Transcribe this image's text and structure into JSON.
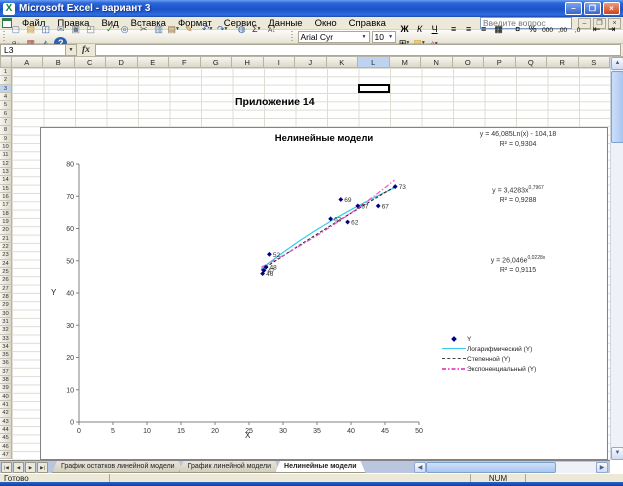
{
  "window": {
    "title": "Microsoft Excel - вариант 3",
    "controls": {
      "minimize": "–",
      "restore": "❐",
      "close": "×"
    }
  },
  "menu": {
    "items": [
      "Файл",
      "Правка",
      "Вид",
      "Вставка",
      "Формат",
      "Сервис",
      "Данные",
      "Окно",
      "Справка"
    ],
    "question_box": "Введите вопрос"
  },
  "toolbar": {
    "standard": [
      {
        "name": "new",
        "glyph": "▢",
        "color": "#5a7ba6"
      },
      {
        "name": "open",
        "glyph": "▤",
        "color": "#c8922a"
      },
      {
        "name": "save",
        "glyph": "◫",
        "color": "#2f5fb0"
      },
      {
        "name": "mail",
        "glyph": "✉",
        "color": "#6a7a8c"
      },
      {
        "name": "print",
        "glyph": "▣",
        "color": "#6a7a8c"
      },
      {
        "name": "print-preview",
        "glyph": "◰",
        "color": "#6a7a8c",
        "divider_after": true
      },
      {
        "name": "spelling",
        "glyph": "✓",
        "color": "#2e7d32"
      },
      {
        "name": "research",
        "glyph": "◎",
        "color": "#3f64a0",
        "divider_after": true
      },
      {
        "name": "cut",
        "glyph": "✂",
        "color": "#555555"
      },
      {
        "name": "copy",
        "glyph": "▥",
        "color": "#5a7ba6"
      },
      {
        "name": "paste",
        "glyph": "▤",
        "color": "#8a6a3a",
        "dd": true
      },
      {
        "name": "format-painter",
        "glyph": "✎",
        "color": "#b07a2a",
        "divider_after": true
      },
      {
        "name": "undo",
        "glyph": "↶",
        "color": "#2f5fb0",
        "dd": true
      },
      {
        "name": "redo",
        "glyph": "↷",
        "color": "#2f5fb0",
        "dd": true,
        "divider_after": true
      },
      {
        "name": "hyperlink",
        "glyph": "◍",
        "color": "#3f64a0"
      },
      {
        "name": "autosum",
        "glyph": "Σ",
        "color": "#333333",
        "dd": true
      },
      {
        "name": "sort-ascending",
        "glyph": "А↓",
        "color": "#333333",
        "small": true
      },
      {
        "name": "sort-descending",
        "glyph": "Я↓",
        "color": "#333333",
        "small": true
      },
      {
        "name": "chart-wizard",
        "glyph": "▦",
        "color": "#b04040"
      },
      {
        "name": "drawing",
        "glyph": "◭",
        "color": "#3f64a0"
      },
      {
        "name": "help",
        "glyph": "?",
        "color": "#ffffff",
        "help": true
      }
    ],
    "formatting": {
      "font_name": "Arial Cyr",
      "font_size": "10",
      "buttons": [
        {
          "name": "bold",
          "glyph": "Ж",
          "cls": "fmt-b"
        },
        {
          "name": "italic",
          "glyph": "К",
          "cls": "fmt-i"
        },
        {
          "name": "underline",
          "glyph": "Ч",
          "cls": "fmt-u",
          "divider_after": true
        },
        {
          "name": "align-left",
          "glyph": "≡"
        },
        {
          "name": "align-center",
          "glyph": "≡"
        },
        {
          "name": "align-right",
          "glyph": "≡"
        },
        {
          "name": "merge-center",
          "glyph": "▦",
          "divider_after": true
        },
        {
          "name": "currency",
          "glyph": "¤"
        },
        {
          "name": "percent",
          "glyph": "%"
        },
        {
          "name": "comma-style",
          "glyph": "000",
          "small": true
        },
        {
          "name": "increase-decimal",
          "glyph": ",00",
          "small": true
        },
        {
          "name": "decrease-decimal",
          "glyph": ",0",
          "small": true,
          "divider_after": true
        },
        {
          "name": "decrease-indent",
          "glyph": "⇤"
        },
        {
          "name": "increase-indent",
          "glyph": "⇥"
        },
        {
          "name": "borders",
          "glyph": "⊞",
          "dd": true
        },
        {
          "name": "fill-color",
          "glyph": "▨",
          "color": "#d8a820",
          "dd": true
        },
        {
          "name": "font-color",
          "glyph": "А",
          "color": "#c02020",
          "dd": true,
          "small": true
        }
      ]
    }
  },
  "formula_bar": {
    "name_box": "L3",
    "fx_label": "fx",
    "formula_value": ""
  },
  "grid": {
    "columns": [
      "A",
      "B",
      "C",
      "D",
      "E",
      "F",
      "G",
      "H",
      "I",
      "J",
      "K",
      "L",
      "M",
      "N",
      "O",
      "P",
      "Q",
      "R",
      "S"
    ],
    "row_count": 47,
    "selected_col": "L",
    "selected_row": 3,
    "cell_text": "Приложение 14"
  },
  "chart_data": {
    "type": "scatter",
    "title": "Нелинейные модели",
    "xlabel": "X",
    "ylabel": "Y",
    "xlim": [
      0,
      50
    ],
    "ylim": [
      0,
      80
    ],
    "xticks": [
      0,
      5,
      10,
      15,
      20,
      25,
      30,
      35,
      40,
      45,
      50
    ],
    "yticks": [
      0,
      10,
      20,
      30,
      40,
      50,
      60,
      70,
      80
    ],
    "grid": false,
    "series": [
      {
        "name": "Y",
        "marker": "diamond",
        "color": "#000080",
        "points": [
          {
            "x": 27.0,
            "y": 46,
            "label": "46"
          },
          {
            "x": 27.2,
            "y": 47,
            "label": "47"
          },
          {
            "x": 27.5,
            "y": 48,
            "label": "48"
          },
          {
            "x": 28.0,
            "y": 52,
            "label": "52"
          },
          {
            "x": 37.0,
            "y": 63,
            "label": "63"
          },
          {
            "x": 38.5,
            "y": 69,
            "label": "69"
          },
          {
            "x": 39.5,
            "y": 62,
            "label": "62"
          },
          {
            "x": 41.0,
            "y": 67,
            "label": "67"
          },
          {
            "x": 44.0,
            "y": 67,
            "label": "67"
          },
          {
            "x": 46.5,
            "y": 73,
            "label": "73"
          }
        ]
      }
    ],
    "trendlines": [
      {
        "name": "Логарифмический (Y)",
        "type": "log",
        "a": 46.085,
        "b": -104.18,
        "color": "#33ccee",
        "dash": "solid",
        "equation": "y = 46,085Ln(x) - 104,18",
        "r2": "R² = 0,9304"
      },
      {
        "name": "Степенной (Y)",
        "type": "pow",
        "a": 3.4283,
        "b": 0.7967,
        "color": "#333333",
        "dash": "dashed",
        "equation_base": "y = 3,4283x",
        "equation_sup": "0,7967",
        "r2": "R² = 0,9288"
      },
      {
        "name": "Экспоненциальный (Y)",
        "type": "exp",
        "a": 26.046,
        "b": 0.0228,
        "color": "#ee55cc",
        "dash": "dashdot",
        "equation_base": "y = 26,046e",
        "equation_sup": "0,0228x",
        "r2": "R² = 0,9115"
      }
    ],
    "trend_x_range": [
      26.8,
      46.6
    ],
    "legend": {
      "position": "right-middle",
      "entries": [
        "Y",
        "Логарифмический (Y)",
        "Степенной (Y)",
        "Экспоненциальный (Y)"
      ]
    }
  },
  "sheet_tabs": {
    "nav": [
      "|◀",
      "◀",
      "▶",
      "▶|"
    ],
    "tabs": [
      "График остатков линейной модели",
      "График линейной модели",
      "Нелинейные модели"
    ],
    "active_index": 2
  },
  "scrollbars": {
    "up": "▲",
    "down": "▼",
    "left": "◀",
    "right": "▶"
  },
  "status_bar": {
    "mode": "Готово",
    "keyboard": "NUM"
  }
}
